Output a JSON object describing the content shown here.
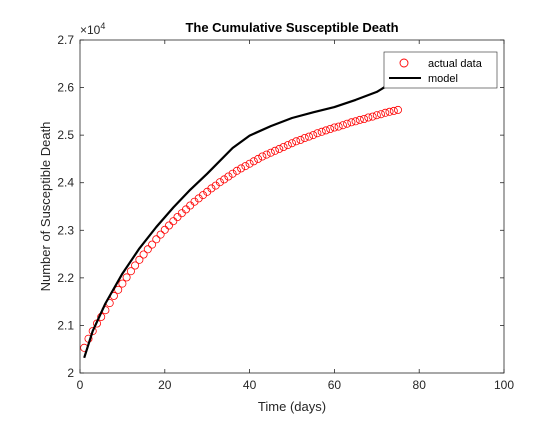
{
  "chart_data": {
    "type": "line",
    "title": "The Cumulative Susceptible Death",
    "xlabel": "Time (days)",
    "ylabel": "Number of Susceptible Death",
    "y_exponent_label": "×10",
    "y_exponent_power": "4",
    "xlim": [
      0,
      100
    ],
    "ylim": [
      20000,
      27000
    ],
    "x_ticks": [
      0,
      20,
      40,
      60,
      80,
      100
    ],
    "x_tick_labels": [
      "0",
      "20",
      "40",
      "60",
      "80",
      "100"
    ],
    "y_ticks": [
      20000,
      21000,
      22000,
      23000,
      24000,
      25000,
      26000,
      27000
    ],
    "y_tick_labels": [
      "2",
      "2.1",
      "2.2",
      "2.3",
      "2.4",
      "2.5",
      "2.6",
      "2.7"
    ],
    "grid": false,
    "legend_position": "top-right",
    "series": [
      {
        "name": "actual data",
        "style": "markers",
        "marker": "circle",
        "color": "#ff0000",
        "x": [
          1,
          2,
          3,
          4,
          5,
          6,
          7,
          8,
          9,
          10,
          11,
          12,
          13,
          14,
          15,
          16,
          17,
          18,
          19,
          20,
          21,
          22,
          23,
          24,
          25,
          26,
          27,
          28,
          29,
          30,
          31,
          32,
          33,
          34,
          35,
          36,
          37,
          38,
          39,
          40,
          41,
          42,
          43,
          44,
          45,
          46,
          47,
          48,
          49,
          50,
          51,
          52,
          53,
          54,
          55,
          56,
          57,
          58,
          59,
          60,
          61,
          62,
          63,
          64,
          65,
          66,
          67,
          68,
          69,
          70,
          71,
          72,
          73,
          74,
          75
        ],
        "y": [
          20530,
          20720,
          20880,
          21040,
          21180,
          21320,
          21470,
          21620,
          21750,
          21880,
          22010,
          22140,
          22260,
          22380,
          22490,
          22600,
          22700,
          22810,
          22910,
          23010,
          23100,
          23190,
          23280,
          23360,
          23440,
          23520,
          23600,
          23670,
          23740,
          23810,
          23880,
          23940,
          24010,
          24070,
          24130,
          24190,
          24250,
          24300,
          24350,
          24400,
          24450,
          24500,
          24550,
          24590,
          24630,
          24670,
          24710,
          24750,
          24790,
          24830,
          24870,
          24900,
          24940,
          24970,
          25000,
          25040,
          25070,
          25100,
          25130,
          25160,
          25180,
          25210,
          25240,
          25270,
          25290,
          25320,
          25340,
          25370,
          25390,
          25420,
          25440,
          25470,
          25490,
          25510,
          25530
        ]
      },
      {
        "name": "model",
        "style": "line",
        "color": "#000000",
        "x": [
          1,
          3,
          6,
          10,
          14,
          18,
          22,
          26,
          30,
          36,
          40,
          45,
          50,
          55,
          60,
          65,
          70,
          75
        ],
        "y": [
          20320,
          20880,
          21460,
          22090,
          22620,
          23070,
          23480,
          23850,
          24190,
          24730,
          24990,
          25190,
          25360,
          25480,
          25590,
          25740,
          25910,
          26180
        ]
      }
    ]
  }
}
